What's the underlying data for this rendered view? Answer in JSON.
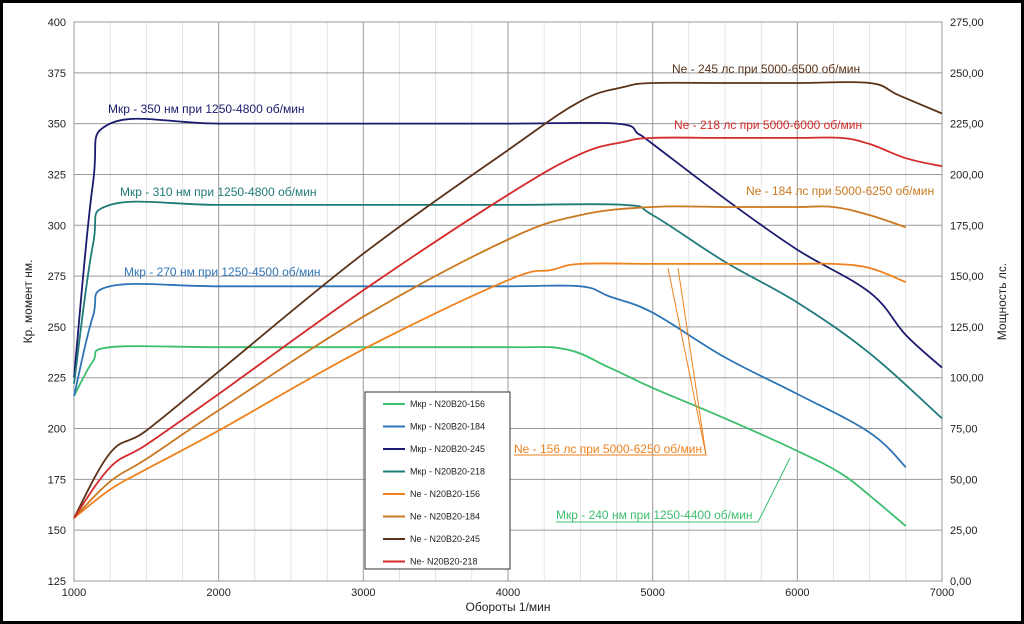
{
  "chart_data": {
    "type": "line",
    "xlabel": "Обороты 1/мин",
    "ylabel_left": "Кр. момент  нм.",
    "ylabel_right": "Мощность  лс.",
    "xlim": [
      1000,
      7000
    ],
    "ylim_left": [
      125,
      400
    ],
    "ylim_right": [
      0,
      275
    ],
    "grid": true,
    "legend_position": "lower-middle",
    "x_ticks": [
      1000,
      2000,
      3000,
      4000,
      5000,
      6000,
      7000
    ],
    "y_ticks_left": [
      125,
      150,
      175,
      200,
      225,
      250,
      275,
      300,
      325,
      350,
      375,
      400
    ],
    "y_ticks_right": [
      "0,00",
      "25,00",
      "50,00",
      "75,00",
      "100,00",
      "125,00",
      "150,00",
      "175,00",
      "200,00",
      "225,00",
      "250,00",
      "275,00"
    ],
    "series": [
      {
        "name": "Мкр  - N20B20-156",
        "axis": "left",
        "color": "#3cbf6e",
        "points": [
          [
            1000,
            216
          ],
          [
            1130,
            233
          ],
          [
            1250,
            240
          ],
          [
            2000,
            240
          ],
          [
            3000,
            240
          ],
          [
            4000,
            240
          ],
          [
            4400,
            239
          ],
          [
            4700,
            230
          ],
          [
            5000,
            220
          ],
          [
            5500,
            205
          ],
          [
            6000,
            189
          ],
          [
            6300,
            178
          ],
          [
            6500,
            167
          ],
          [
            6750,
            152
          ]
        ]
      },
      {
        "name": "Мкр  - N20B20-184",
        "axis": "left",
        "color": "#2e75b6",
        "points": [
          [
            1000,
            216
          ],
          [
            1130,
            255
          ],
          [
            1250,
            270
          ],
          [
            2000,
            270
          ],
          [
            3000,
            270
          ],
          [
            4000,
            270
          ],
          [
            4500,
            270
          ],
          [
            4700,
            265
          ],
          [
            5000,
            257
          ],
          [
            5500,
            235
          ],
          [
            6000,
            217
          ],
          [
            6500,
            198
          ],
          [
            6750,
            181
          ]
        ]
      },
      {
        "name": "Мкр  - N20B20-245",
        "axis": "left",
        "color": "#1a1a6e",
        "points": [
          [
            1000,
            225
          ],
          [
            1130,
            320
          ],
          [
            1250,
            350
          ],
          [
            2000,
            350
          ],
          [
            3000,
            350
          ],
          [
            4000,
            350
          ],
          [
            4750,
            350
          ],
          [
            4900,
            345
          ],
          [
            5000,
            340
          ],
          [
            5500,
            313
          ],
          [
            6000,
            288
          ],
          [
            6500,
            267
          ],
          [
            6750,
            246
          ],
          [
            7000,
            230
          ]
        ]
      },
      {
        "name": "Мкр  - N20B20-218",
        "axis": "left",
        "color": "#1f7b78",
        "points": [
          [
            1000,
            222
          ],
          [
            1130,
            290
          ],
          [
            1250,
            310
          ],
          [
            2000,
            310
          ],
          [
            3000,
            310
          ],
          [
            4000,
            310
          ],
          [
            4800,
            310
          ],
          [
            5000,
            305
          ],
          [
            5500,
            282
          ],
          [
            6000,
            262
          ],
          [
            6500,
            237
          ],
          [
            7000,
            205
          ]
        ]
      },
      {
        "name": "Ne  - N20B20-156",
        "axis": "right",
        "color": "#f0821e",
        "points": [
          [
            1000,
            31
          ],
          [
            1250,
            45
          ],
          [
            1500,
            55
          ],
          [
            2000,
            74
          ],
          [
            3000,
            114
          ],
          [
            4000,
            148
          ],
          [
            4300,
            153
          ],
          [
            4500,
            156
          ],
          [
            5000,
            156
          ],
          [
            5500,
            156
          ],
          [
            6000,
            156
          ],
          [
            6250,
            156
          ],
          [
            6500,
            154
          ],
          [
            6750,
            147
          ]
        ]
      },
      {
        "name": "Ne   - N20B20-184",
        "axis": "right",
        "color": "#c97a20",
        "points": [
          [
            1000,
            31
          ],
          [
            1250,
            49
          ],
          [
            1500,
            60
          ],
          [
            2000,
            84
          ],
          [
            3000,
            130
          ],
          [
            4000,
            168
          ],
          [
            4500,
            180
          ],
          [
            5000,
            184
          ],
          [
            5500,
            184
          ],
          [
            6000,
            184
          ],
          [
            6250,
            184
          ],
          [
            6500,
            180
          ],
          [
            6750,
            174
          ]
        ]
      },
      {
        "name": "Ne   - N20B20-245",
        "axis": "right",
        "color": "#5a3318",
        "points": [
          [
            1000,
            31
          ],
          [
            1250,
            63
          ],
          [
            1500,
            74
          ],
          [
            2000,
            103
          ],
          [
            3000,
            161
          ],
          [
            4000,
            212
          ],
          [
            4500,
            236
          ],
          [
            4800,
            243
          ],
          [
            5000,
            245
          ],
          [
            5500,
            245
          ],
          [
            6000,
            245
          ],
          [
            6500,
            245
          ],
          [
            6700,
            239
          ],
          [
            7000,
            230
          ]
        ]
      },
      {
        "name": "Ne- N20B20-218",
        "axis": "right",
        "color": "#d42a2a",
        "points": [
          [
            1000,
            31
          ],
          [
            1250,
            56
          ],
          [
            1500,
            67
          ],
          [
            2000,
            92
          ],
          [
            3000,
            143
          ],
          [
            4000,
            190
          ],
          [
            4500,
            210
          ],
          [
            4800,
            216
          ],
          [
            5000,
            218
          ],
          [
            5500,
            218
          ],
          [
            6000,
            218
          ],
          [
            6300,
            218
          ],
          [
            6500,
            215
          ],
          [
            6750,
            208
          ],
          [
            7000,
            204
          ]
        ]
      }
    ],
    "annotations": [
      {
        "text": "Мкр - 350 нм при 1250-4800 об/мин",
        "color": "#1a1a6e"
      },
      {
        "text": "Мкр - 310 нм при 1250-4800 об/мин",
        "color": "#1f7b78"
      },
      {
        "text": "Мкр - 270 нм при 1250-4500 об/мин",
        "color": "#2e75b6"
      },
      {
        "text": "Мкр - 240 нм при 1250-4400 об/мин",
        "color": "#3cbf6e"
      },
      {
        "text": "Ne - 245 лс при 5000-6500 об/мин",
        "color": "#5a3318"
      },
      {
        "text": "Ne - 218 лс при 5000-6000 об/мин",
        "color": "#d42a2a"
      },
      {
        "text": "Ne - 184 лс при 5000-6250 об/мин",
        "color": "#c97a20"
      },
      {
        "text": "Ne - 156 лс при 5000-6250 об/мин",
        "color": "#f0821e"
      }
    ]
  }
}
